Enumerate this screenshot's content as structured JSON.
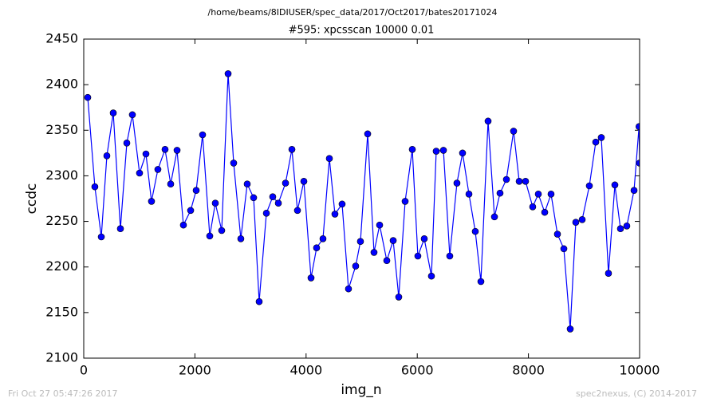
{
  "chart_data": {
    "type": "line",
    "suptitle": "/home/beams/8IDIUSER/spec_data/2017/Oct2017/bates20171024",
    "title": "#595: xpcsscan 10000 0.01",
    "xlabel": "img_n",
    "ylabel": "ccdc",
    "footer_left": "Fri Oct 27 05:47:26 2017",
    "footer_right": "spec2nexus, (C) 2014-2017",
    "xlim": [
      0,
      10000
    ],
    "xticks": [
      0,
      2000,
      4000,
      6000,
      8000,
      10000
    ],
    "ylim": [
      2100,
      2450
    ],
    "yticks": [
      2100,
      2150,
      2200,
      2250,
      2300,
      2350,
      2400,
      2450
    ],
    "grid": false,
    "x": [
      72,
      200,
      316,
      416,
      531,
      660,
      775,
      875,
      1004,
      1119,
      1219,
      1334,
      1463,
      1564,
      1679,
      1793,
      1923,
      2023,
      2138,
      2267,
      2367,
      2482,
      2597,
      2697,
      2826,
      2941,
      3056,
      3156,
      3286,
      3400,
      3501,
      3630,
      3745,
      3845,
      3960,
      4089,
      4189,
      4304,
      4419,
      4519,
      4648,
      4763,
      4892,
      4978,
      5108,
      5222,
      5323,
      5452,
      5567,
      5667,
      5782,
      5911,
      6011,
      6126,
      6255,
      6341,
      6471,
      6585,
      6714,
      6815,
      6930,
      7044,
      7145,
      7274,
      7389,
      7489,
      7604,
      7733,
      7834,
      7948,
      8077,
      8178,
      8293,
      8407,
      8522,
      8637,
      8752,
      8852,
      8967,
      9096,
      9211,
      9311,
      9440,
      9555,
      9656,
      9770,
      9900,
      9990,
      10000
    ],
    "series": [
      {
        "color": "#0000ff",
        "marker_edge": "#000000",
        "values": [
          2386,
          2288,
          2233,
          2322,
          2369,
          2242,
          2336,
          2367,
          2303,
          2324,
          2272,
          2307,
          2329,
          2291,
          2328,
          2246,
          2262,
          2284,
          2345,
          2234,
          2270,
          2240,
          2412,
          2314,
          2231,
          2291,
          2276,
          2162,
          2259,
          2277,
          2270,
          2292,
          2329,
          2262,
          2294,
          2188,
          2221,
          2231,
          2319,
          2258,
          2269,
          2176,
          2201,
          2228,
          2346,
          2216,
          2246,
          2207,
          2229,
          2167,
          2272,
          2329,
          2212,
          2231,
          2190,
          2327,
          2328,
          2212,
          2292,
          2325,
          2280,
          2239,
          2184,
          2360,
          2255,
          2281,
          2296,
          2349,
          2294,
          2294,
          2266,
          2280,
          2260,
          2280,
          2236,
          2220,
          2132,
          2249,
          2252,
          2289,
          2337,
          2342,
          2193,
          2290,
          2242,
          2245,
          2284,
          2354,
          2314
        ]
      }
    ]
  }
}
